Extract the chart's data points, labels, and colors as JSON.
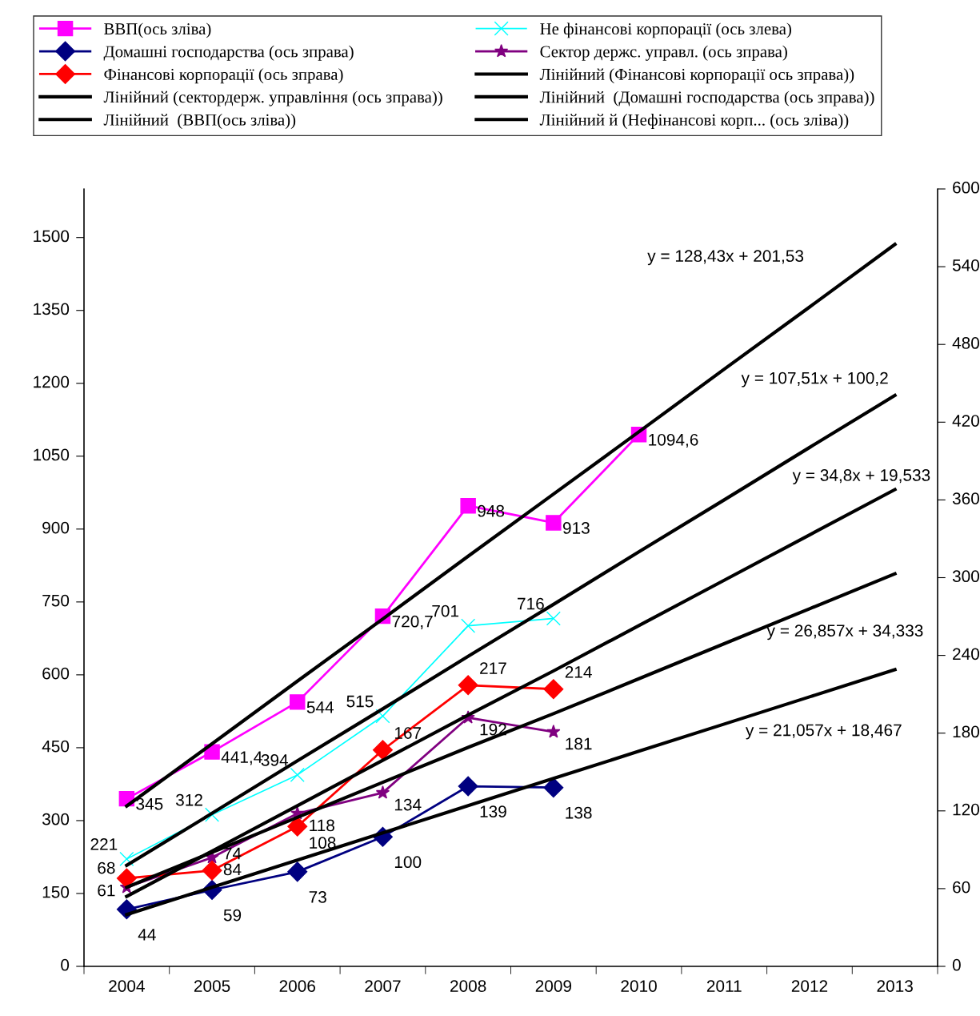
{
  "chart_data": {
    "type": "line",
    "categories": [
      "2004",
      "2005",
      "2006",
      "2007",
      "2008",
      "2009",
      "2010",
      "2011",
      "2012",
      "2013"
    ],
    "ylim": [
      0,
      1600
    ],
    "yticks": [
      0,
      150,
      300,
      450,
      600,
      750,
      900,
      1050,
      1200,
      1350,
      1500
    ],
    "y2lim": [
      0,
      600
    ],
    "y2ticks": [
      0,
      60,
      120,
      180,
      240,
      300,
      360,
      420,
      480,
      540,
      600
    ],
    "grid": false,
    "legend": "top",
    "line_style": "solid",
    "series": [
      {
        "name": "ВВП(ось зліва)",
        "color": "#ff00ff",
        "marker": "square",
        "values": [
          345,
          441.4,
          544,
          720.7,
          948,
          913,
          1094.6,
          null,
          null,
          null
        ],
        "value_labels": [
          "345",
          "441,4",
          "544",
          "720,7",
          "948",
          "913",
          "1094,6",
          null,
          null,
          null
        ]
      },
      {
        "name": "Не фінансові корпорації (ось злева)",
        "color": "#00ffff",
        "marker": "cross",
        "values": [
          221,
          312,
          394,
          515,
          701,
          716,
          null,
          null,
          null,
          null
        ],
        "value_labels": [
          "221",
          "312",
          "394",
          "515",
          "701",
          "716",
          null,
          null,
          null,
          null
        ]
      },
      {
        "name": "Домашні господарства (ось зправа)",
        "color": "#000080",
        "marker": "diamond",
        "axis": "y2",
        "values": [
          44,
          59,
          73,
          100,
          139,
          138,
          null,
          null,
          null,
          null
        ],
        "value_labels": [
          "44",
          "59",
          "73",
          "100",
          "139",
          "138",
          null,
          null,
          null,
          null
        ]
      },
      {
        "name": "Сектор держс. управл. (ось зправа)",
        "color": "#800080",
        "marker": "star",
        "axis": "y2",
        "values": [
          61,
          84,
          118,
          134,
          192,
          181,
          null,
          null,
          null,
          null
        ],
        "value_labels": [
          "61",
          "84",
          "118",
          "134",
          "192",
          "181",
          null,
          null,
          null,
          null
        ]
      },
      {
        "name": "Фінансові корпорації (ось зправа)",
        "color": "#ff0000",
        "marker": "diamond",
        "axis": "y2",
        "values": [
          68,
          74,
          108,
          167,
          217,
          214,
          null,
          null,
          null,
          null
        ],
        "value_labels": [
          "68",
          "74",
          "108",
          "167",
          "217",
          "214",
          null,
          null,
          null,
          null
        ]
      },
      {
        "name": "Лінійний (Фінансові корпорації ось зправа))",
        "color": "#000000",
        "marker": "none",
        "axis": "y2",
        "values": [
          54,
          89,
          124,
          159,
          194,
          228,
          263,
          298,
          333,
          368
        ]
      },
      {
        "name": "Лінійний (сектордерж. управління (ось зправа))",
        "color": "#000000",
        "marker": "none",
        "axis": "y2",
        "values": [
          61,
          88,
          115,
          142,
          169,
          195,
          222,
          249,
          276,
          303
        ]
      },
      {
        "name": "Лінійний  (Домашні господарства (ось зправа))",
        "color": "#000000",
        "marker": "none",
        "axis": "y2",
        "values": [
          40,
          61,
          82,
          103,
          124,
          145,
          166,
          187,
          208,
          229
        ]
      },
      {
        "name": "Лінійний  (ВВП(ось зліва))",
        "color": "#000000",
        "marker": "none",
        "values": [
          330,
          458,
          587,
          715,
          844,
          972,
          1100,
          1229,
          1357,
          1486
        ]
      },
      {
        "name": "Лінійний й (Нефінансові корп... (ось зліва))",
        "color": "#000000",
        "marker": "none",
        "values": [
          208,
          315,
          423,
          530,
          638,
          745,
          853,
          960,
          1068,
          1175
        ]
      }
    ],
    "annotations": [
      "y = 128,43x + 201,53",
      "y = 107,51x + 100,2",
      "y = 34,8x + 19,533",
      "y = 26,857x + 34,333",
      "y = 21,057x + 18,467"
    ]
  }
}
